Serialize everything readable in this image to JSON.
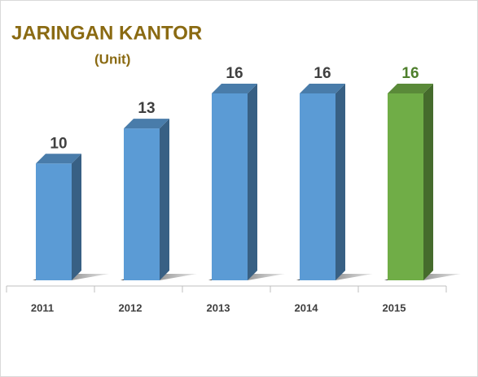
{
  "chart_data": {
    "type": "bar3d",
    "title": "JARINGAN KANTOR",
    "subtitle": "(Unit)",
    "categories": [
      "2011",
      "2012",
      "2013",
      "2014",
      "2015"
    ],
    "values": [
      10,
      13,
      16,
      16,
      16
    ],
    "colors": [
      "#5b9bd5",
      "#5b9bd5",
      "#5b9bd5",
      "#5b9bd5",
      "#70ad47"
    ],
    "label_colors": [
      "#404040",
      "#404040",
      "#404040",
      "#404040",
      "#4e7f2c"
    ]
  }
}
